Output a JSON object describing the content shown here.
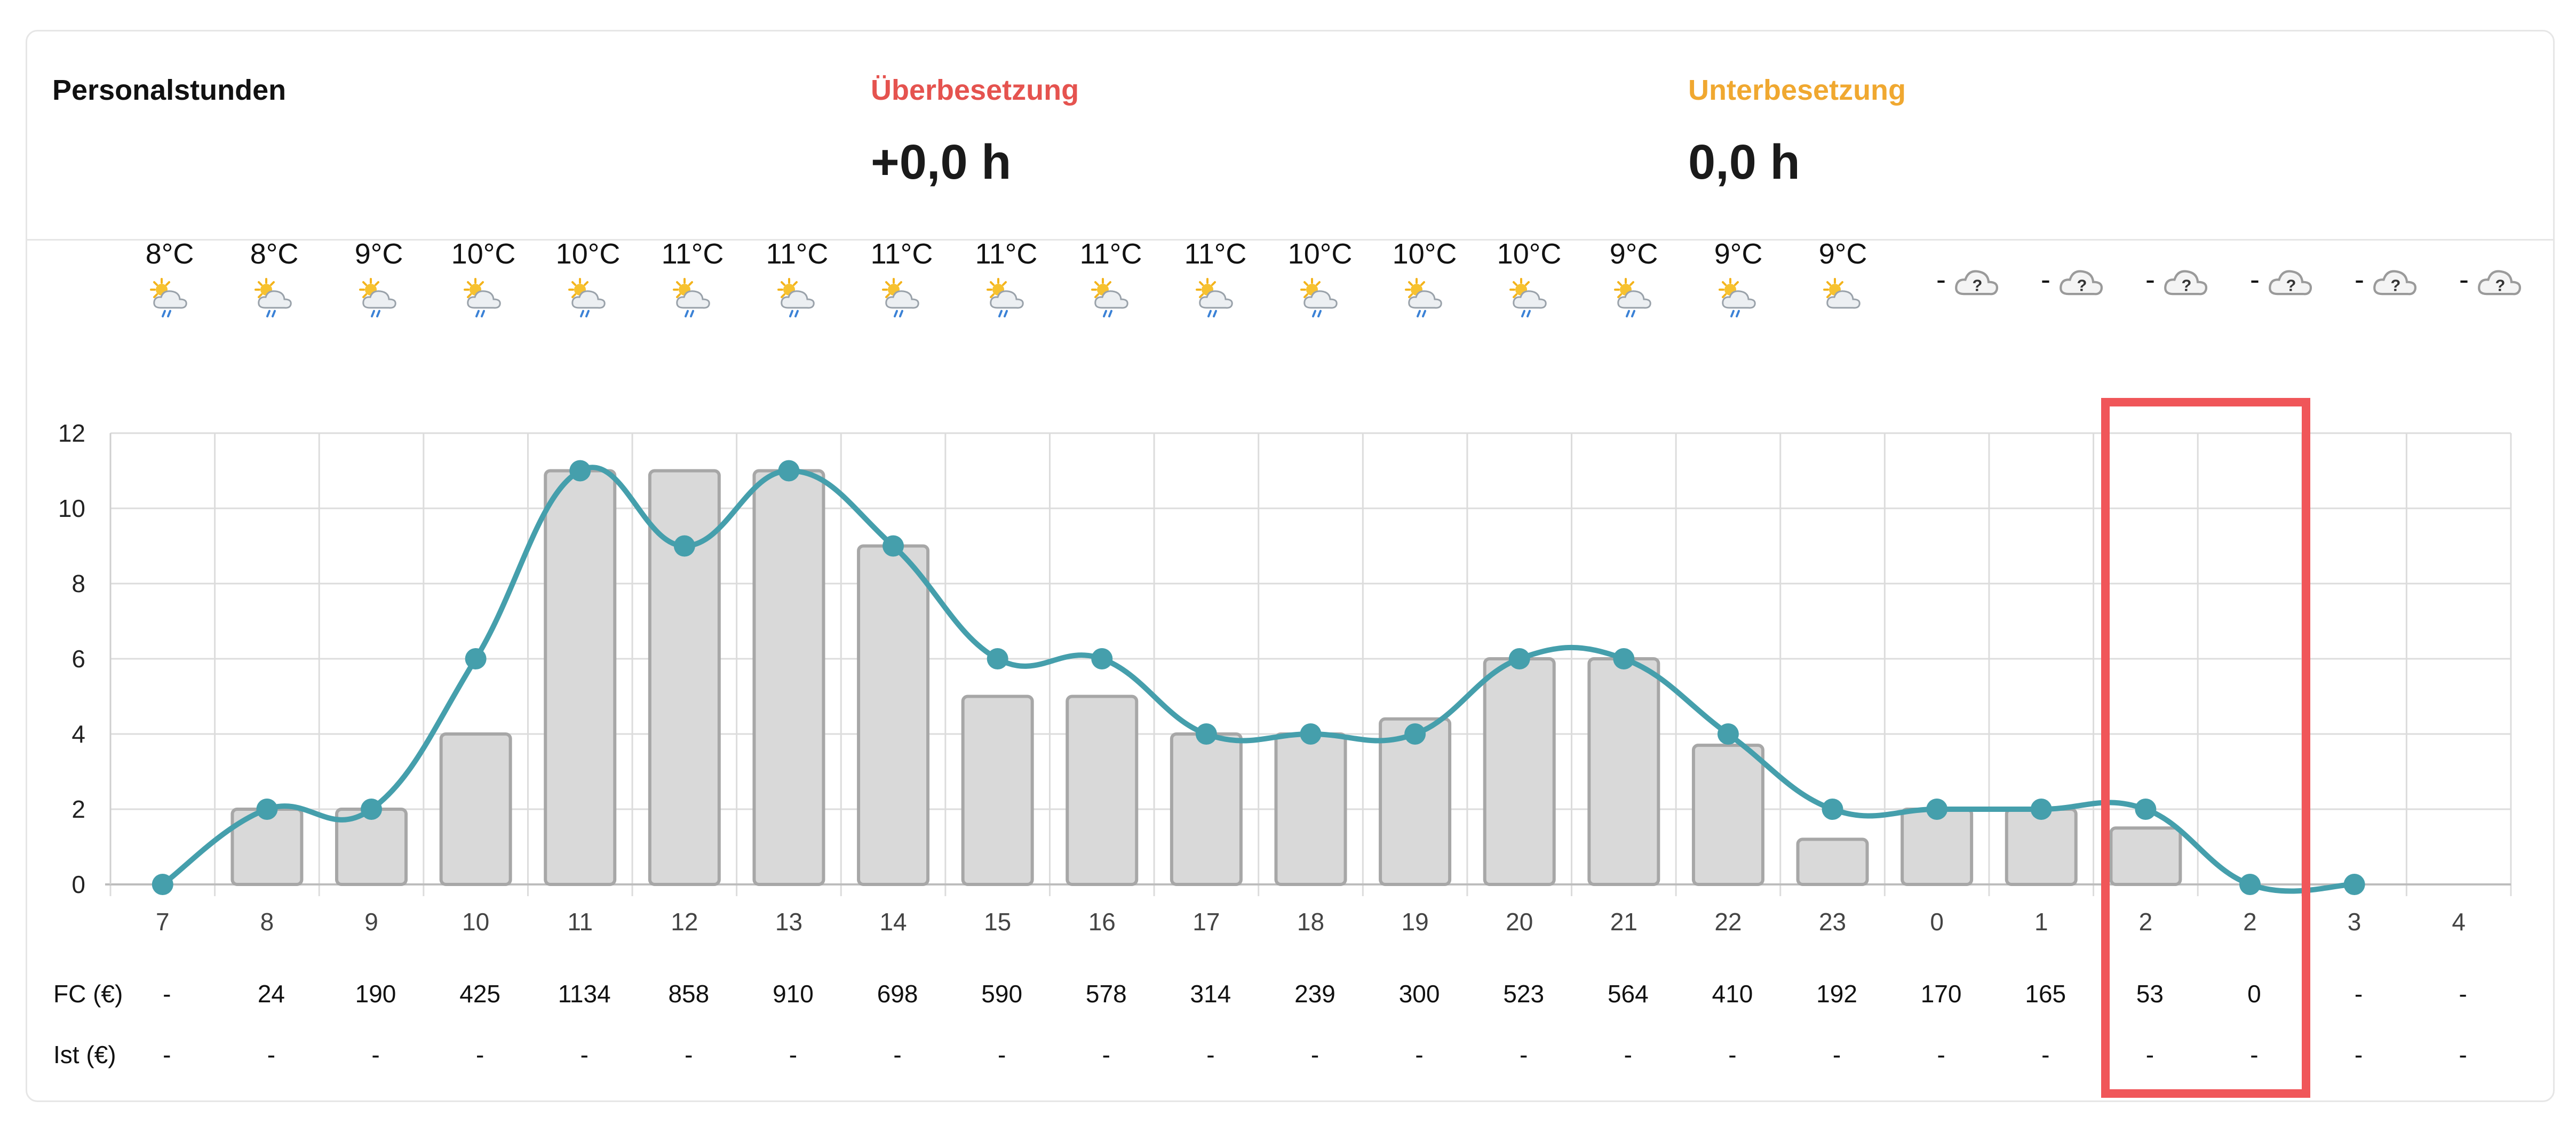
{
  "summary": {
    "staff_hours_label": "Personalstunden",
    "overstaffing_label": "Überbesetzung",
    "overstaffing_value": "+0,0 h",
    "understaffing_label": "Unterbesetzung",
    "understaffing_value": "0,0 h"
  },
  "colors": {
    "overstaffing": "#e5534f",
    "understaffing": "#f0a830",
    "line": "#459fac",
    "bar_fill": "#d9d9d9",
    "bar_stroke": "#a7a7a7",
    "highlight": "#f05659"
  },
  "weather": [
    {
      "temp": "8°C",
      "icon": "sun-cloud-rain-icon"
    },
    {
      "temp": "8°C",
      "icon": "sun-cloud-rain-icon"
    },
    {
      "temp": "9°C",
      "icon": "sun-cloud-rain-icon"
    },
    {
      "temp": "10°C",
      "icon": "sun-cloud-rain-icon"
    },
    {
      "temp": "10°C",
      "icon": "sun-cloud-rain-icon"
    },
    {
      "temp": "11°C",
      "icon": "sun-cloud-rain-icon"
    },
    {
      "temp": "11°C",
      "icon": "sun-cloud-rain-icon"
    },
    {
      "temp": "11°C",
      "icon": "sun-cloud-rain-icon"
    },
    {
      "temp": "11°C",
      "icon": "sun-cloud-rain-icon"
    },
    {
      "temp": "11°C",
      "icon": "sun-cloud-rain-icon"
    },
    {
      "temp": "11°C",
      "icon": "sun-cloud-rain-icon"
    },
    {
      "temp": "10°C",
      "icon": "sun-cloud-rain-icon"
    },
    {
      "temp": "10°C",
      "icon": "sun-cloud-rain-icon"
    },
    {
      "temp": "10°C",
      "icon": "sun-cloud-rain-icon"
    },
    {
      "temp": "9°C",
      "icon": "sun-cloud-rain-icon"
    },
    {
      "temp": "9°C",
      "icon": "sun-cloud-rain-icon"
    },
    {
      "temp": "9°C",
      "icon": "sun-cloud-icon"
    },
    {
      "temp": "-",
      "icon": "unknown-weather-icon"
    },
    {
      "temp": "-",
      "icon": "unknown-weather-icon"
    },
    {
      "temp": "-",
      "icon": "unknown-weather-icon"
    },
    {
      "temp": "-",
      "icon": "unknown-weather-icon"
    },
    {
      "temp": "-",
      "icon": "unknown-weather-icon"
    },
    {
      "temp": "-",
      "icon": "unknown-weather-icon"
    }
  ],
  "chart_data": {
    "type": "bar",
    "title": "",
    "xlabel": "",
    "ylabel": "",
    "ylim": [
      0,
      12
    ],
    "yticks": [
      "0",
      "2",
      "4",
      "6",
      "8",
      "10",
      "12"
    ],
    "grid": true,
    "categories": [
      "7",
      "8",
      "9",
      "10",
      "11",
      "12",
      "13",
      "14",
      "15",
      "16",
      "17",
      "18",
      "19",
      "20",
      "21",
      "22",
      "23",
      "0",
      "1",
      "2",
      "2",
      "3",
      "4"
    ],
    "series": [
      {
        "name": "bars",
        "type": "bar",
        "values": [
          0,
          2,
          2,
          4,
          11,
          11,
          11,
          9,
          5,
          5,
          4,
          4,
          4.4,
          6,
          6,
          3.7,
          1.2,
          2,
          2,
          1.5,
          0,
          0,
          0
        ]
      },
      {
        "name": "line",
        "type": "line",
        "values": [
          0,
          2,
          2,
          6,
          11,
          9,
          11,
          9,
          6,
          6,
          4,
          4,
          4,
          6,
          6,
          4,
          2,
          2,
          2,
          2,
          0,
          0,
          null
        ]
      }
    ]
  },
  "table": {
    "fc_label": "FC (€)",
    "ist_label": "Ist (€)",
    "fc": [
      "-",
      "24",
      "190",
      "425",
      "1134",
      "858",
      "910",
      "698",
      "590",
      "578",
      "314",
      "239",
      "300",
      "523",
      "564",
      "410",
      "192",
      "170",
      "165",
      "53",
      "0",
      "-",
      "-"
    ],
    "ist": [
      "-",
      "-",
      "-",
      "-",
      "-",
      "-",
      "-",
      "-",
      "-",
      "-",
      "-",
      "-",
      "-",
      "-",
      "-",
      "-",
      "-",
      "-",
      "-",
      "-",
      "-",
      "-",
      "-"
    ]
  }
}
